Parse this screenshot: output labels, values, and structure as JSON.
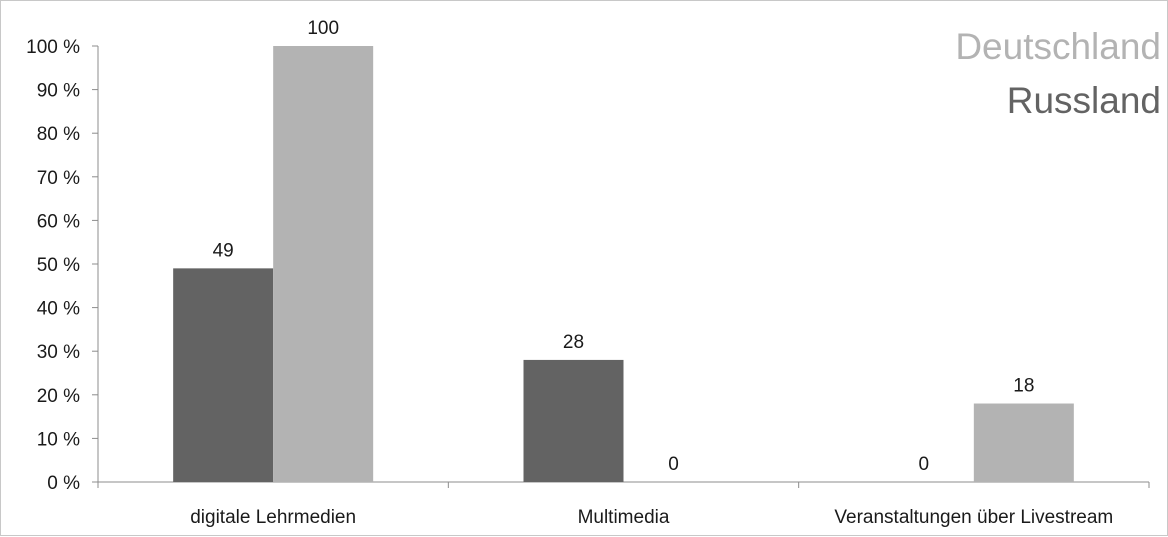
{
  "chart_data": {
    "type": "bar",
    "categories": [
      "digitale Lehrmedien",
      "Multimedia",
      "Veranstaltungen über Livestream"
    ],
    "series": [
      {
        "name": "Russland",
        "color": "#636363",
        "values": [
          49,
          28,
          0
        ]
      },
      {
        "name": "Deutschland",
        "color": "#b3b3b3",
        "values": [
          100,
          0,
          18
        ]
      }
    ],
    "yticks": [
      "0 %",
      "10 %",
      "20 %",
      "30 %",
      "40 %",
      "50 %",
      "60 %",
      "70 %",
      "80 %",
      "90 %",
      "100 %"
    ],
    "ylim": [
      0,
      100
    ],
    "grid": false,
    "legend": {
      "position": "top-right",
      "entries": [
        {
          "label": "Deutschland",
          "color": "#b3b3b3"
        },
        {
          "label": "Russland",
          "color": "#636363"
        }
      ]
    }
  }
}
